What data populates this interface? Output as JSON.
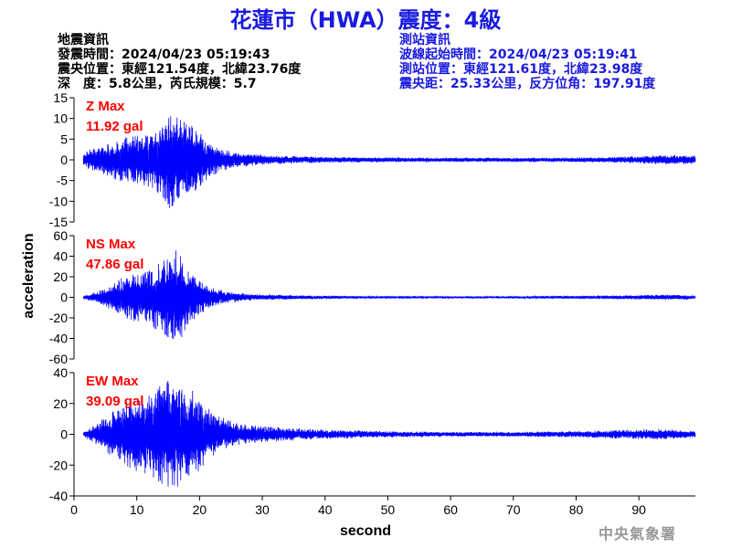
{
  "title": "花蓮市（HWA）震度：4級",
  "quake_info": {
    "heading": "地震資訊",
    "origin_time": "發震時間：2024/04/23 05:19:43",
    "epicenter": "震央位置：東經121.54度，北緯23.76度",
    "depth_magnitude": "深　度：5.8公里，芮氏規模：5.7"
  },
  "station_info": {
    "heading": "測站資訊",
    "wave_start": "波線起始時間：2024/04/23 05:19:41",
    "station_location": "測站位置：東經121.61度，北緯23.98度",
    "distance_azimuth": "震央距：25.33公里，反方位角：197.91度"
  },
  "footer_org": "中央氣象署",
  "colors": {
    "title": "#1a1adf",
    "trace": "#0000ff",
    "max_label": "#ff0000",
    "station_info": "#1a1adf"
  },
  "chart_data": {
    "type": "line",
    "xlabel": "second",
    "ylabel": "acceleration",
    "xlim": [
      0,
      99
    ],
    "xticks": [
      0,
      10,
      20,
      30,
      40,
      50,
      60,
      70,
      80,
      90
    ],
    "panels": [
      {
        "name": "Z Max",
        "max_label": "11.92 gal",
        "ylim": [
          -15,
          15
        ],
        "yticks": [
          15,
          10,
          5,
          0,
          -5,
          -10,
          -15
        ],
        "envelope": [
          [
            1.5,
            1.4
          ],
          [
            3,
            3
          ],
          [
            5,
            3.5
          ],
          [
            7,
            5
          ],
          [
            9,
            5.5
          ],
          [
            11,
            6
          ],
          [
            13,
            7
          ],
          [
            15,
            11.92
          ],
          [
            17,
            9.5
          ],
          [
            19,
            8
          ],
          [
            21,
            5
          ],
          [
            23,
            3
          ],
          [
            25,
            2
          ],
          [
            28,
            1.5
          ],
          [
            32,
            1.0
          ],
          [
            40,
            0.7
          ],
          [
            55,
            0.5
          ],
          [
            70,
            0.5
          ],
          [
            85,
            0.6
          ],
          [
            95,
            1.2
          ],
          [
            99,
            1.0
          ]
        ]
      },
      {
        "name": "NS Max",
        "max_label": "47.86 gal",
        "ylim": [
          -60,
          60
        ],
        "yticks": [
          60,
          40,
          20,
          0,
          -20,
          -40,
          -60
        ],
        "envelope": [
          [
            1.5,
            1.5
          ],
          [
            4,
            6
          ],
          [
            6,
            13
          ],
          [
            8,
            20
          ],
          [
            10,
            24
          ],
          [
            12,
            28
          ],
          [
            14,
            34
          ],
          [
            16,
            47.86
          ],
          [
            18,
            32
          ],
          [
            20,
            17
          ],
          [
            22,
            9
          ],
          [
            24,
            6
          ],
          [
            28,
            3
          ],
          [
            35,
            2
          ],
          [
            45,
            1.2
          ],
          [
            60,
            1
          ],
          [
            70,
            1
          ],
          [
            80,
            1.5
          ],
          [
            95,
            2.5
          ],
          [
            99,
            1.5
          ]
        ]
      },
      {
        "name": "EW Max",
        "max_label": "39.09 gal",
        "ylim": [
          -40,
          40
        ],
        "yticks": [
          40,
          20,
          0,
          -20,
          -40
        ],
        "envelope": [
          [
            1.5,
            1.5
          ],
          [
            4,
            8
          ],
          [
            6,
            14
          ],
          [
            8,
            20
          ],
          [
            10,
            24
          ],
          [
            12,
            26
          ],
          [
            14,
            32
          ],
          [
            15.8,
            39.09
          ],
          [
            17,
            30
          ],
          [
            19,
            28
          ],
          [
            21,
            18
          ],
          [
            23,
            12
          ],
          [
            26,
            7
          ],
          [
            30,
            5
          ],
          [
            40,
            3
          ],
          [
            50,
            2
          ],
          [
            60,
            1.5
          ],
          [
            70,
            1.5
          ],
          [
            80,
            2
          ],
          [
            93,
            3.5
          ],
          [
            99,
            2
          ]
        ]
      }
    ]
  }
}
